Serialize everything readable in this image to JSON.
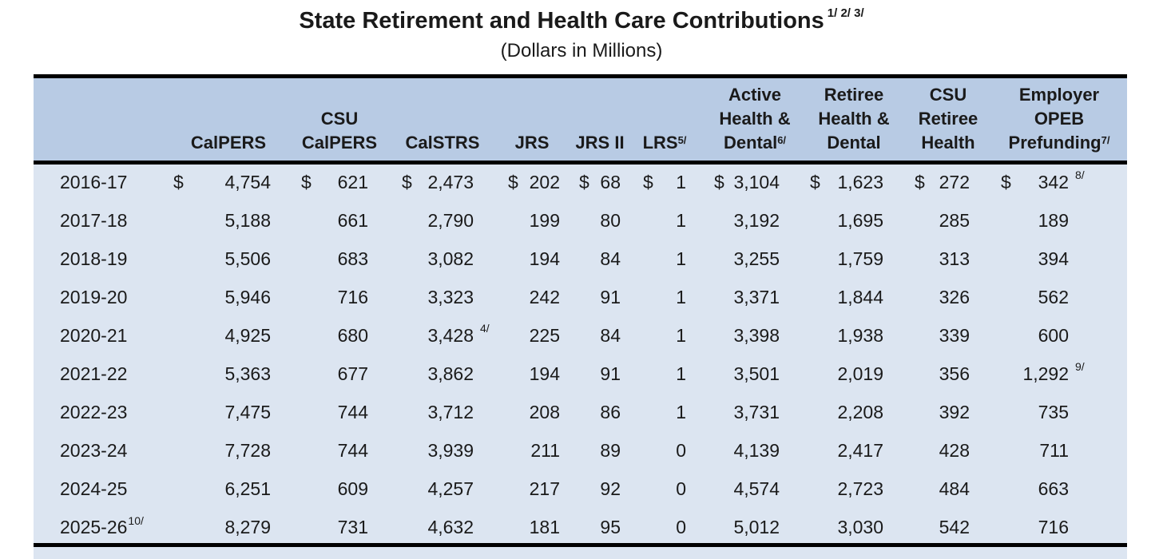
{
  "title": "State Retirement and Health Care Contributions",
  "title_notes": "1/ 2/ 3/",
  "subtitle": "(Dollars in Millions)",
  "columns": [
    {
      "id": "calpers",
      "lines": [
        "CalPERS"
      ],
      "note": ""
    },
    {
      "id": "csu_calpers",
      "lines": [
        "CSU",
        "CalPERS"
      ],
      "note": ""
    },
    {
      "id": "calstrs",
      "lines": [
        "CalSTRS"
      ],
      "note": ""
    },
    {
      "id": "jrs",
      "lines": [
        "JRS"
      ],
      "note": ""
    },
    {
      "id": "jrs2",
      "lines": [
        "JRS II"
      ],
      "note": ""
    },
    {
      "id": "lrs",
      "lines": [
        "LRS"
      ],
      "note": "5/"
    },
    {
      "id": "active",
      "lines": [
        "Active",
        "Health &",
        "Dental"
      ],
      "note": "6/"
    },
    {
      "id": "retiree",
      "lines": [
        "Retiree",
        "Health &",
        "Dental"
      ],
      "note": ""
    },
    {
      "id": "csu_retiree",
      "lines": [
        "CSU",
        "Retiree",
        "Health"
      ],
      "note": ""
    },
    {
      "id": "opeb",
      "lines": [
        "Employer",
        "OPEB",
        "Prefunding"
      ],
      "note": "7/"
    }
  ],
  "rows": [
    {
      "year": "2016-17",
      "year_note": "",
      "values": [
        "4,754",
        "621",
        "2,473",
        "202",
        "68",
        "1",
        "3,104",
        "1,623",
        "272",
        "342"
      ],
      "notes": [
        "",
        "",
        "",
        "",
        "",
        "",
        "",
        "",
        "",
        "8/"
      ],
      "dollar": true
    },
    {
      "year": "2017-18",
      "year_note": "",
      "values": [
        "5,188",
        "661",
        "2,790",
        "199",
        "80",
        "1",
        "3,192",
        "1,695",
        "285",
        "189"
      ],
      "notes": [
        "",
        "",
        "",
        "",
        "",
        "",
        "",
        "",
        "",
        ""
      ]
    },
    {
      "year": "2018-19",
      "year_note": "",
      "values": [
        "5,506",
        "683",
        "3,082",
        "194",
        "84",
        "1",
        "3,255",
        "1,759",
        "313",
        "394"
      ],
      "notes": [
        "",
        "",
        "",
        "",
        "",
        "",
        "",
        "",
        "",
        ""
      ]
    },
    {
      "year": "2019-20",
      "year_note": "",
      "values": [
        "5,946",
        "716",
        "3,323",
        "242",
        "91",
        "1",
        "3,371",
        "1,844",
        "326",
        "562"
      ],
      "notes": [
        "",
        "",
        "",
        "",
        "",
        "",
        "",
        "",
        "",
        ""
      ]
    },
    {
      "year": "2020-21",
      "year_note": "",
      "values": [
        "4,925",
        "680",
        "3,428",
        "225",
        "84",
        "1",
        "3,398",
        "1,938",
        "339",
        "600"
      ],
      "notes": [
        "",
        "",
        "4/",
        "",
        "",
        "",
        "",
        "",
        "",
        ""
      ]
    },
    {
      "year": "2021-22",
      "year_note": "",
      "values": [
        "5,363",
        "677",
        "3,862",
        "194",
        "91",
        "1",
        "3,501",
        "2,019",
        "356",
        "1,292"
      ],
      "notes": [
        "",
        "",
        "",
        "",
        "",
        "",
        "",
        "",
        "",
        "9/"
      ]
    },
    {
      "year": "2022-23",
      "year_note": "",
      "values": [
        "7,475",
        "744",
        "3,712",
        "208",
        "86",
        "1",
        "3,731",
        "2,208",
        "392",
        "735"
      ],
      "notes": [
        "",
        "",
        "",
        "",
        "",
        "",
        "",
        "",
        "",
        ""
      ]
    },
    {
      "year": "2023-24",
      "year_note": "",
      "values": [
        "7,728",
        "744",
        "3,939",
        "211",
        "89",
        "0",
        "4,139",
        "2,417",
        "428",
        "711"
      ],
      "notes": [
        "",
        "",
        "",
        "",
        "",
        "",
        "",
        "",
        "",
        ""
      ]
    },
    {
      "year": "2024-25",
      "year_note": "",
      "values": [
        "6,251",
        "609",
        "4,257",
        "217",
        "92",
        "0",
        "4,574",
        "2,723",
        "484",
        "663"
      ],
      "notes": [
        "",
        "",
        "",
        "",
        "",
        "",
        "",
        "",
        "",
        ""
      ]
    },
    {
      "year": "2025-26",
      "year_note": "10/",
      "values": [
        "8,279",
        "731",
        "4,632",
        "181",
        "95",
        "0",
        "5,012",
        "3,030",
        "542",
        "716"
      ],
      "notes": [
        "",
        "",
        "",
        "",
        "",
        "",
        "",
        "",
        "",
        ""
      ]
    }
  ],
  "currency_symbol": "$"
}
